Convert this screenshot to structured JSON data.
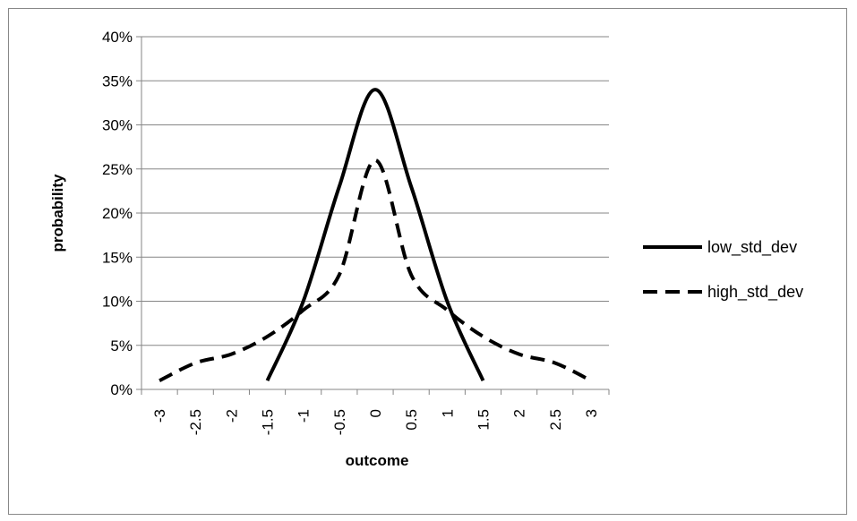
{
  "chart_data": {
    "type": "line",
    "xlabel": "outcome",
    "ylabel": "probability",
    "x_ticks": [
      "-3",
      "-2.5",
      "-2",
      "-1.5",
      "-1",
      "-0.5",
      "0",
      "0.5",
      "1",
      "1.5",
      "2",
      "2.5",
      "3"
    ],
    "y_ticks": [
      "0%",
      "5%",
      "10%",
      "15%",
      "20%",
      "25%",
      "30%",
      "35%",
      "40%"
    ],
    "ylim": [
      0,
      0.4
    ],
    "grid": "horizontal",
    "legend_position": "right",
    "series": [
      {
        "name": "low_std_dev",
        "style": "solid",
        "color": "#000000",
        "points": [
          {
            "x": "-1.5",
            "y": 0.01
          },
          {
            "x": "-1",
            "y": 0.1
          },
          {
            "x": "-0.5",
            "y": 0.23
          },
          {
            "x": "0",
            "y": 0.34
          },
          {
            "x": "0.5",
            "y": 0.23
          },
          {
            "x": "1",
            "y": 0.1
          },
          {
            "x": "1.5",
            "y": 0.01
          }
        ]
      },
      {
        "name": "high_std_dev",
        "style": "dashed",
        "color": "#000000",
        "points": [
          {
            "x": "-3",
            "y": 0.01
          },
          {
            "x": "-2.5",
            "y": 0.03
          },
          {
            "x": "-2",
            "y": 0.04
          },
          {
            "x": "-1.5",
            "y": 0.06
          },
          {
            "x": "-1",
            "y": 0.09
          },
          {
            "x": "-0.5",
            "y": 0.13
          },
          {
            "x": "0",
            "y": 0.26
          },
          {
            "x": "0.5",
            "y": 0.13
          },
          {
            "x": "1",
            "y": 0.09
          },
          {
            "x": "1.5",
            "y": 0.06
          },
          {
            "x": "2",
            "y": 0.04
          },
          {
            "x": "2.5",
            "y": 0.03
          },
          {
            "x": "3",
            "y": 0.01
          }
        ]
      }
    ]
  }
}
